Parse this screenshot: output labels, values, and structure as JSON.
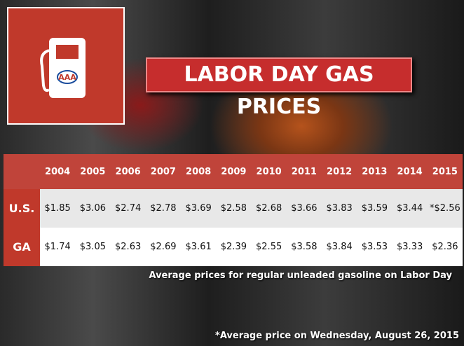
{
  "logo": "AAA",
  "title": "LABOR DAY GAS PRICES",
  "table": {
    "years": [
      "2004",
      "2005",
      "2006",
      "2007",
      "2008",
      "2009",
      "2010",
      "2011",
      "2012",
      "2013",
      "2014",
      "2015"
    ],
    "rows": [
      {
        "label": "U.S.",
        "cells": [
          "$1.85",
          "$3.06",
          "$2.74",
          "$2.78",
          "$3.69",
          "$2.58",
          "$2.68",
          "$3.66",
          "$3.83",
          "$3.59",
          "$3.44",
          "*$2.56"
        ]
      },
      {
        "label": "GA",
        "cells": [
          "$1.74",
          "$3.05",
          "$2.63",
          "$2.69",
          "$3.61",
          "$2.39",
          "$2.55",
          "$3.58",
          "$3.84",
          "$3.53",
          "$3.33",
          "$2.36"
        ]
      }
    ]
  },
  "caption": "Average prices for regular unleaded gasoline on Labor Day",
  "footnote": "*Average price on Wednesday, August 26, 2015"
}
